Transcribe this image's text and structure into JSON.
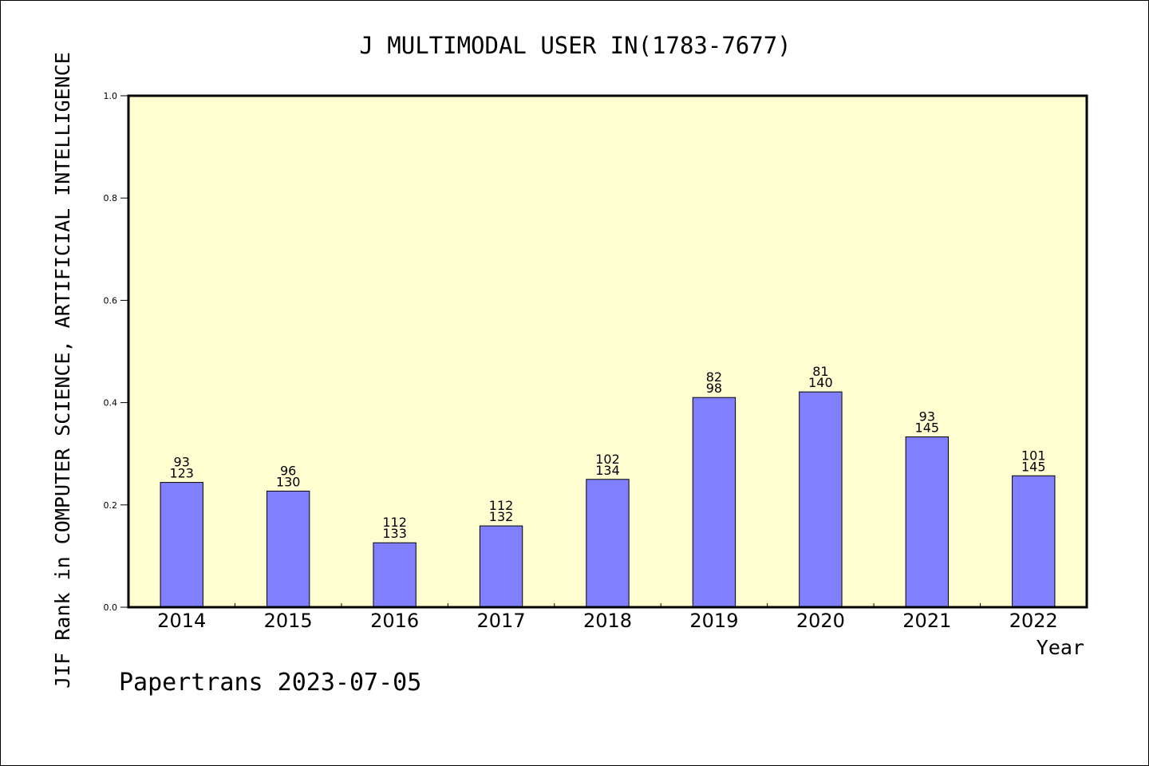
{
  "colors": {
    "plot_background": "#ffffd2",
    "bar_fill": "#8080ff",
    "bar_stroke": "#000000",
    "axis": "#000000"
  },
  "chart_data": {
    "type": "bar",
    "title": "J MULTIMODAL USER IN(1783-7677)",
    "xlabel": "Year",
    "ylabel": "JIF Rank in COMPUTER SCIENCE, ARTIFICIAL INTELLIGENCE",
    "ylim": [
      0,
      1.0
    ],
    "yticks": [
      "0.0",
      "0.2",
      "0.4",
      "0.6",
      "0.8",
      "1.0"
    ],
    "grid": false,
    "categories": [
      "2014",
      "2015",
      "2016",
      "2017",
      "2018",
      "2019",
      "2020",
      "2021",
      "2022"
    ],
    "values": [
      0.244,
      0.227,
      0.126,
      0.159,
      0.25,
      0.41,
      0.421,
      0.333,
      0.257
    ],
    "rank_labels": [
      "93",
      "96",
      "112",
      "112",
      "102",
      "82",
      "81",
      "93",
      "101"
    ],
    "total_labels": [
      "123",
      "130",
      "133",
      "132",
      "134",
      "98",
      "140",
      "145",
      "145"
    ]
  },
  "footer": "Papertrans 2023-07-05"
}
